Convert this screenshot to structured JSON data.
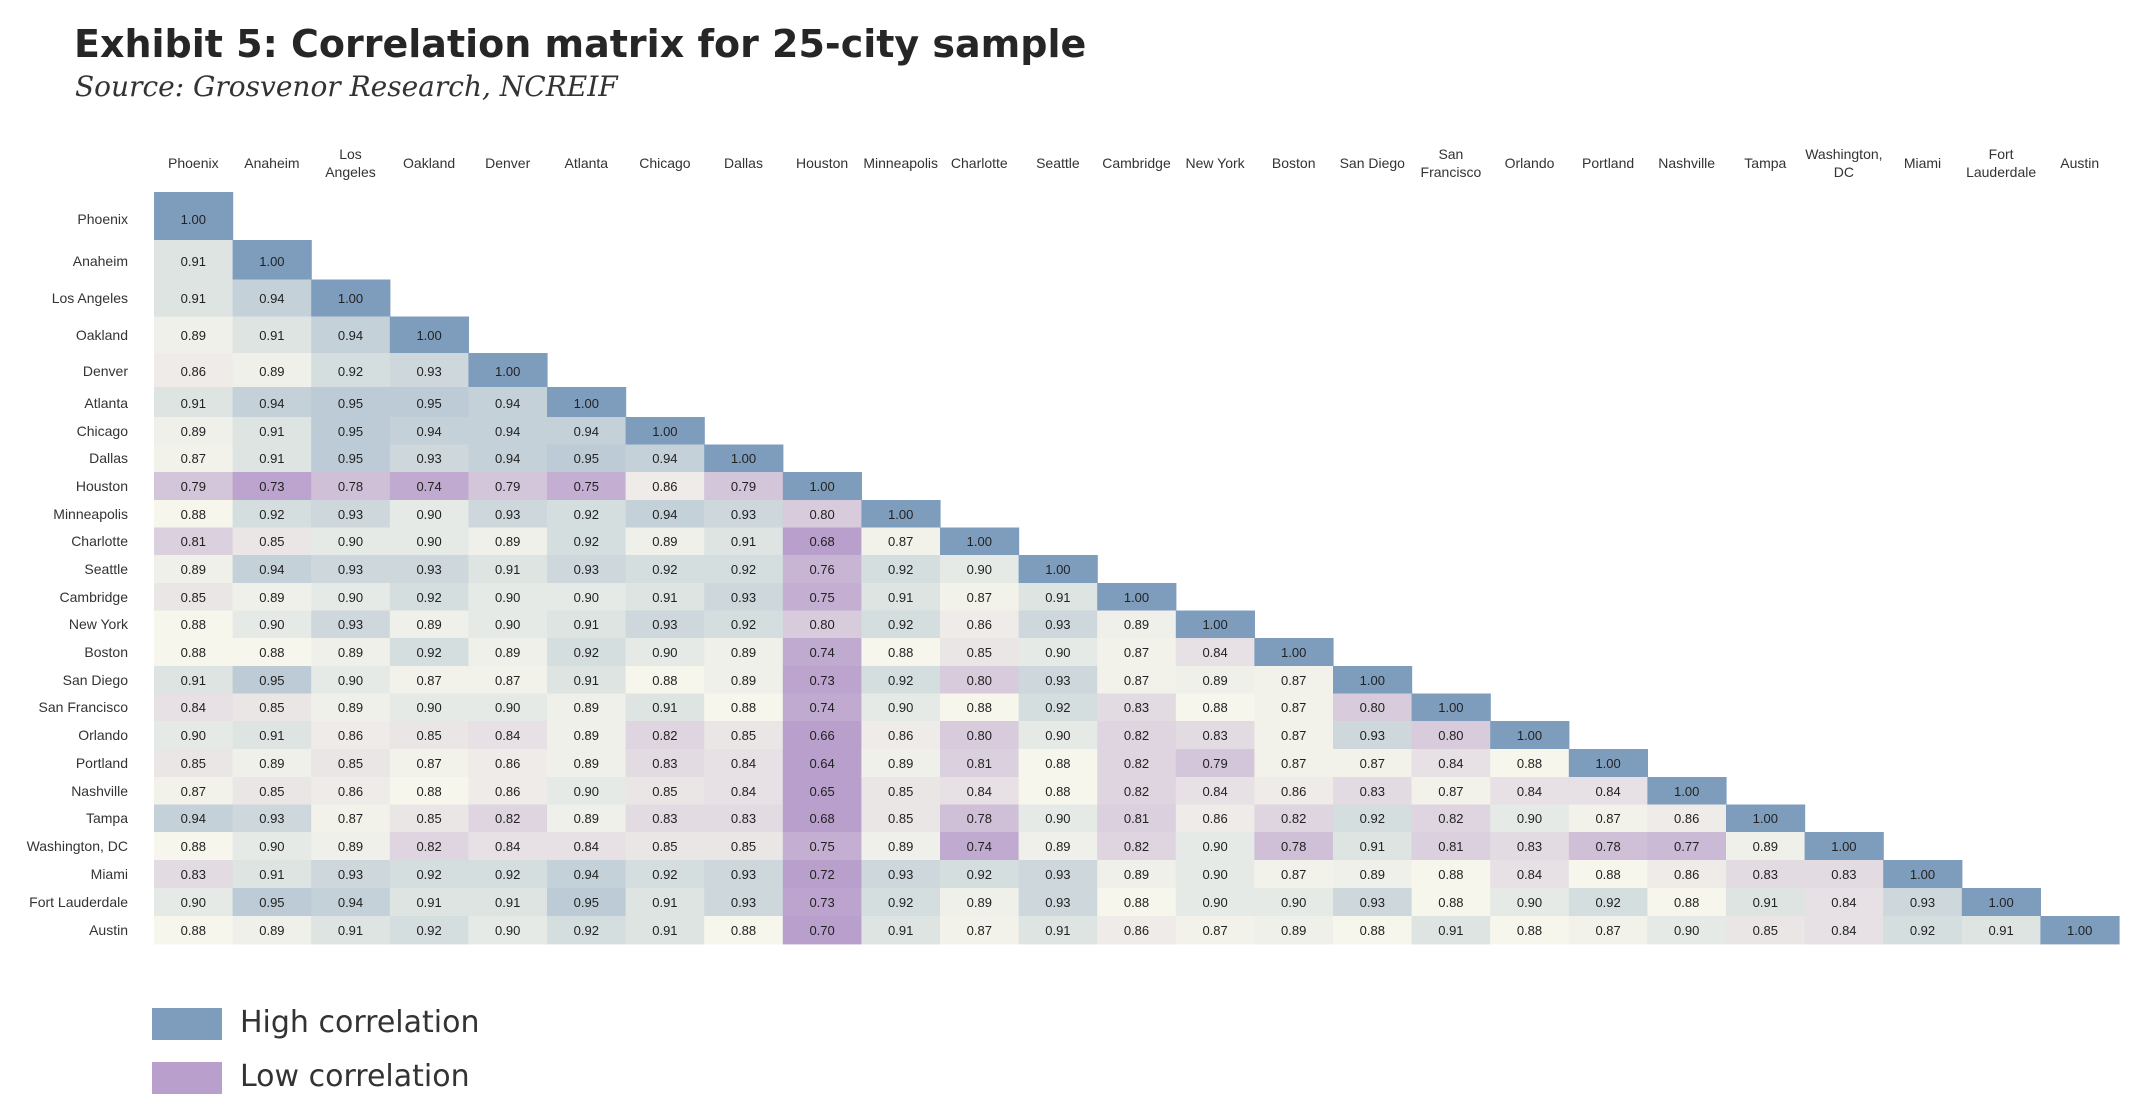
{
  "title": "Exhibit 5: Correlation matrix for 25-city sample",
  "subtitle": "Source: Grosvenor Research, NCREIF",
  "legend": {
    "high_label": "High correlation",
    "low_label": "Low correlation",
    "high_color": "#7e9dbd",
    "low_color": "#b89fcc"
  },
  "chart_data": {
    "type": "heatmap",
    "title": "Exhibit 5: Correlation matrix for 25-city sample",
    "subtitle": "Source: Grosvenor Research, NCREIF",
    "columns": [
      "Phoenix",
      "Anaheim",
      "Los Angeles",
      "Oakland",
      "Denver",
      "Atlanta",
      "Chicago",
      "Dallas",
      "Houston",
      "Minneapolis",
      "Charlotte",
      "Seattle",
      "Cambridge",
      "New York",
      "Boston",
      "San Diego",
      "San Francisco",
      "Orlando",
      "Portland",
      "Nashville",
      "Tampa",
      "Washington, DC",
      "Miami",
      "Fort Lauderdale",
      "Austin"
    ],
    "column_labels": [
      [
        "Phoenix"
      ],
      [
        "Anaheim"
      ],
      [
        "Los",
        "Angeles"
      ],
      [
        "Oakland"
      ],
      [
        "Denver"
      ],
      [
        "Atlanta"
      ],
      [
        "Chicago"
      ],
      [
        "Dallas"
      ],
      [
        "Houston"
      ],
      [
        "Minneapolis"
      ],
      [
        "Charlotte"
      ],
      [
        "Seattle"
      ],
      [
        "Cambridge"
      ],
      [
        "New York"
      ],
      [
        "Boston"
      ],
      [
        "San Diego"
      ],
      [
        "San",
        "Francisco"
      ],
      [
        "Orlando"
      ],
      [
        "Portland"
      ],
      [
        "Nashville"
      ],
      [
        "Tampa"
      ],
      [
        "Washington,",
        "DC"
      ],
      [
        "Miami"
      ],
      [
        "Fort",
        "Lauderdale"
      ],
      [
        "Austin"
      ]
    ],
    "rows": [
      "Phoenix",
      "Anaheim",
      "Los Angeles",
      "Oakland",
      "Denver",
      "Atlanta",
      "Chicago",
      "Dallas",
      "Houston",
      "Minneapolis",
      "Charlotte",
      "Seattle",
      "Cambridge",
      "New York",
      "Boston",
      "San Diego",
      "San Francisco",
      "Orlando",
      "Portland",
      "Nashville",
      "Tampa",
      "Washington, DC",
      "Miami",
      "Fort Lauderdale",
      "Austin"
    ],
    "values": [
      [
        "1.00"
      ],
      [
        "0.91",
        "1.00"
      ],
      [
        "0.91",
        "0.94",
        "1.00"
      ],
      [
        "0.89",
        "0.91",
        "0.94",
        "1.00"
      ],
      [
        "0.86",
        "0.89",
        "0.92",
        "0.93",
        "1.00"
      ],
      [
        "0.91",
        "0.94",
        "0.95",
        "0.95",
        "0.94",
        "1.00"
      ],
      [
        "0.89",
        "0.91",
        "0.95",
        "0.94",
        "0.94",
        "0.94",
        "1.00"
      ],
      [
        "0.87",
        "0.91",
        "0.95",
        "0.93",
        "0.94",
        "0.95",
        "0.94",
        "1.00"
      ],
      [
        "0.79",
        "0.73",
        "0.78",
        "0.74",
        "0.79",
        "0.75",
        "0.86",
        "0.79",
        "1.00"
      ],
      [
        "0.88",
        "0.92",
        "0.93",
        "0.90",
        "0.93",
        "0.92",
        "0.94",
        "0.93",
        "0.80",
        "1.00"
      ],
      [
        "0.81",
        "0.85",
        "0.90",
        "0.90",
        "0.89",
        "0.92",
        "0.89",
        "0.91",
        "0.68",
        "0.87",
        "1.00"
      ],
      [
        "0.89",
        "0.94",
        "0.93",
        "0.93",
        "0.91",
        "0.93",
        "0.92",
        "0.92",
        "0.76",
        "0.92",
        "0.90",
        "1.00"
      ],
      [
        "0.85",
        "0.89",
        "0.90",
        "0.92",
        "0.90",
        "0.90",
        "0.91",
        "0.93",
        "0.75",
        "0.91",
        "0.87",
        "0.91",
        "1.00"
      ],
      [
        "0.88",
        "0.90",
        "0.93",
        "0.89",
        "0.90",
        "0.91",
        "0.93",
        "0.92",
        "0.80",
        "0.92",
        "0.86",
        "0.93",
        "0.89",
        "1.00"
      ],
      [
        "0.88",
        "0.88",
        "0.89",
        "0.92",
        "0.89",
        "0.92",
        "0.90",
        "0.89",
        "0.74",
        "0.88",
        "0.85",
        "0.90",
        "0.87",
        "0.84",
        "1.00"
      ],
      [
        "0.91",
        "0.95",
        "0.90",
        "0.87",
        "0.87",
        "0.91",
        "0.88",
        "0.89",
        "0.73",
        "0.92",
        "0.80",
        "0.93",
        "0.87",
        "0.89",
        "0.87",
        "1.00"
      ],
      [
        "0.84",
        "0.85",
        "0.89",
        "0.90",
        "0.90",
        "0.89",
        "0.91",
        "0.88",
        "0.74",
        "0.90",
        "0.88",
        "0.92",
        "0.83",
        "0.88",
        "0.87",
        "0.80",
        "1.00"
      ],
      [
        "0.90",
        "0.91",
        "0.86",
        "0.85",
        "0.84",
        "0.89",
        "0.82",
        "0.85",
        "0.66",
        "0.86",
        "0.80",
        "0.90",
        "0.82",
        "0.83",
        "0.87",
        "0.93",
        "0.80",
        "1.00"
      ],
      [
        "0.85",
        "0.89",
        "0.85",
        "0.87",
        "0.86",
        "0.89",
        "0.83",
        "0.84",
        "0.64",
        "0.89",
        "0.81",
        "0.88",
        "0.82",
        "0.79",
        "0.87",
        "0.87",
        "0.84",
        "0.88",
        "1.00"
      ],
      [
        "0.87",
        "0.85",
        "0.86",
        "0.88",
        "0.86",
        "0.90",
        "0.85",
        "0.84",
        "0.65",
        "0.85",
        "0.84",
        "0.88",
        "0.82",
        "0.84",
        "0.86",
        "0.83",
        "0.87",
        "0.84",
        "0.84",
        "1.00"
      ],
      [
        "0.94",
        "0.93",
        "0.87",
        "0.85",
        "0.82",
        "0.89",
        "0.83",
        "0.83",
        "0.68",
        "0.85",
        "0.78",
        "0.90",
        "0.81",
        "0.86",
        "0.82",
        "0.92",
        "0.82",
        "0.90",
        "0.87",
        "0.86",
        "1.00"
      ],
      [
        "0.88",
        "0.90",
        "0.89",
        "0.82",
        "0.84",
        "0.84",
        "0.85",
        "0.85",
        "0.75",
        "0.89",
        "0.74",
        "0.89",
        "0.82",
        "0.90",
        "0.78",
        "0.91",
        "0.81",
        "0.83",
        "0.78",
        "0.77",
        "0.89",
        "1.00"
      ],
      [
        "0.83",
        "0.91",
        "0.93",
        "0.92",
        "0.92",
        "0.94",
        "0.92",
        "0.93",
        "0.72",
        "0.93",
        "0.92",
        "0.93",
        "0.89",
        "0.90",
        "0.87",
        "0.89",
        "0.88",
        "0.84",
        "0.88",
        "0.86",
        "0.83",
        "0.83",
        "1.00"
      ],
      [
        "0.90",
        "0.95",
        "0.94",
        "0.91",
        "0.91",
        "0.95",
        "0.91",
        "0.93",
        "0.73",
        "0.92",
        "0.89",
        "0.93",
        "0.88",
        "0.90",
        "0.90",
        "0.93",
        "0.88",
        "0.90",
        "0.92",
        "0.88",
        "0.91",
        "0.84",
        "0.93",
        "1.00"
      ],
      [
        "0.88",
        "0.89",
        "0.91",
        "0.92",
        "0.90",
        "0.92",
        "0.91",
        "0.88",
        "0.70",
        "0.91",
        "0.87",
        "0.91",
        "0.86",
        "0.87",
        "0.89",
        "0.88",
        "0.91",
        "0.88",
        "0.87",
        "0.90",
        "0.85",
        "0.84",
        "0.92",
        "0.91",
        "1.00"
      ]
    ],
    "color_scale": {
      "high": "#7e9dbd",
      "low": "#b89fcc",
      "mid": "#f6f6ec"
    }
  }
}
